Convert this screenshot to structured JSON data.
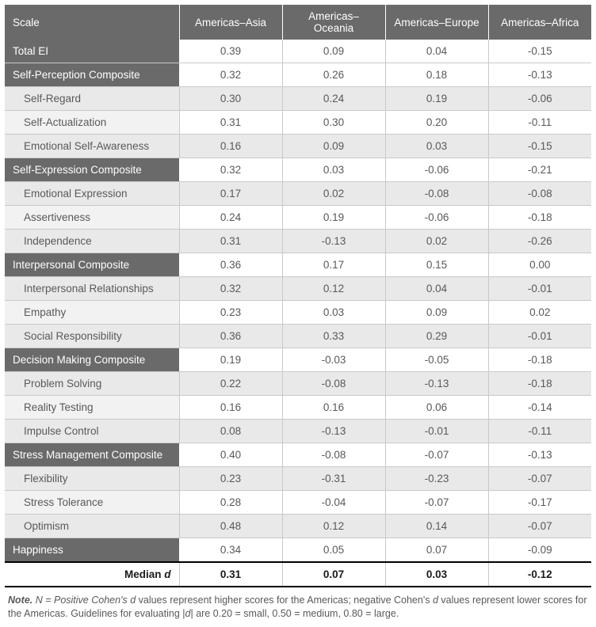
{
  "columns": [
    {
      "key": "scale",
      "label": "Scale"
    },
    {
      "key": "asia",
      "label": "Americas–Asia"
    },
    {
      "key": "oceania",
      "label": "Americas–Oceania"
    },
    {
      "key": "europe",
      "label": "Americas–Europe"
    },
    {
      "key": "africa",
      "label": "Americas–Africa"
    }
  ],
  "rows": [
    {
      "type": "header",
      "label": "Total EI",
      "values": [
        "0.39",
        "0.09",
        "0.04",
        "-0.15"
      ]
    },
    {
      "type": "header",
      "label": "Self-Perception Composite",
      "values": [
        "0.32",
        "0.26",
        "0.18",
        "-0.13"
      ]
    },
    {
      "type": "sub",
      "label": "Self-Regard",
      "values": [
        "0.30",
        "0.24",
        "0.19",
        "-0.06"
      ]
    },
    {
      "type": "sub",
      "label": "Self-Actualization",
      "values": [
        "0.31",
        "0.30",
        "0.20",
        "-0.11"
      ]
    },
    {
      "type": "sub",
      "label": "Emotional Self-Awareness",
      "values": [
        "0.16",
        "0.09",
        "0.03",
        "-0.15"
      ]
    },
    {
      "type": "header",
      "label": "Self-Expression Composite",
      "values": [
        "0.32",
        "0.03",
        "-0.06",
        "-0.21"
      ]
    },
    {
      "type": "sub",
      "label": "Emotional Expression",
      "values": [
        "0.17",
        "0.02",
        "-0.08",
        "-0.08"
      ]
    },
    {
      "type": "sub",
      "label": "Assertiveness",
      "values": [
        "0.24",
        "0.19",
        "-0.06",
        "-0.18"
      ]
    },
    {
      "type": "sub",
      "label": "Independence",
      "values": [
        "0.31",
        "-0.13",
        "0.02",
        "-0.26"
      ]
    },
    {
      "type": "header",
      "label": "Interpersonal Composite",
      "values": [
        "0.36",
        "0.17",
        "0.15",
        "0.00"
      ]
    },
    {
      "type": "sub",
      "label": "Interpersonal Relationships",
      "values": [
        "0.32",
        "0.12",
        "0.04",
        "-0.01"
      ]
    },
    {
      "type": "sub",
      "label": "Empathy",
      "values": [
        "0.23",
        "0.03",
        "0.09",
        "0.02"
      ]
    },
    {
      "type": "sub",
      "label": "Social Responsibility",
      "values": [
        "0.36",
        "0.33",
        "0.29",
        "-0.01"
      ]
    },
    {
      "type": "header",
      "label": "Decision Making Composite",
      "values": [
        "0.19",
        "-0.03",
        "-0.05",
        "-0.18"
      ]
    },
    {
      "type": "sub",
      "label": "Problem Solving",
      "values": [
        "0.22",
        "-0.08",
        "-0.13",
        "-0.18"
      ]
    },
    {
      "type": "sub",
      "label": "Reality Testing",
      "values": [
        "0.16",
        "0.16",
        "0.06",
        "-0.14"
      ]
    },
    {
      "type": "sub",
      "label": "Impulse Control",
      "values": [
        "0.08",
        "-0.13",
        "-0.01",
        "-0.11"
      ]
    },
    {
      "type": "header",
      "label": "Stress Management Composite",
      "values": [
        "0.40",
        "-0.08",
        "-0.07",
        "-0.13"
      ]
    },
    {
      "type": "sub",
      "label": "Flexibility",
      "values": [
        "0.23",
        "-0.31",
        "-0.23",
        "-0.07"
      ]
    },
    {
      "type": "sub",
      "label": "Stress Tolerance",
      "values": [
        "0.28",
        "-0.04",
        "-0.07",
        "-0.17"
      ]
    },
    {
      "type": "sub",
      "label": "Optimism",
      "values": [
        "0.48",
        "0.12",
        "0.14",
        "-0.07"
      ]
    },
    {
      "type": "header",
      "label": "Happiness",
      "values": [
        "0.34",
        "0.05",
        "0.07",
        "-0.09"
      ]
    }
  ],
  "median": {
    "label": "Median d",
    "values": [
      "0.31",
      "0.07",
      "0.03",
      "-0.12"
    ]
  },
  "note": {
    "lead": "Note.",
    "body1": " N = Positive Cohen's ",
    "d1": "d",
    "body2": " values represent higher scores for the Americas; negative Cohen's ",
    "d2": "d",
    "body3": " values represent lower scores for the Americas. Guidelines for evaluating |",
    "d3": "d",
    "body4": "| are 0.20 = small, 0.50 = medium, 0.80 = large."
  },
  "colors": {
    "header_bg": "#6a6a6a",
    "header_fg": "#ffffff",
    "sub_even_bg": "#e9e9e9",
    "sub_odd_scale_bg": "#f2f2f2",
    "text": "#595959",
    "border": "#c9c9c9"
  }
}
